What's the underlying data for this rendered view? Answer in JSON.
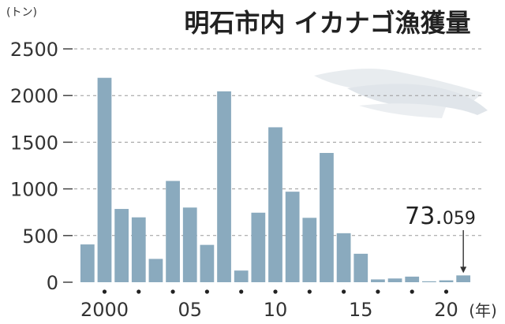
{
  "chart_data": {
    "type": "bar",
    "title": "明石市内 イカナゴ漁獲量",
    "unit_label": "(トン)",
    "xlabel_suffix": "(年)",
    "ylim": [
      0,
      2500
    ],
    "yticks": [
      0,
      500,
      1000,
      1500,
      2000,
      2500
    ],
    "ytick_labels": [
      "0",
      "500",
      "1000",
      "1500",
      "2000",
      "2500"
    ],
    "grid": true,
    "bar_color": "#8aaabe",
    "years": [
      1999,
      2000,
      2001,
      2002,
      2003,
      2004,
      2005,
      2006,
      2007,
      2008,
      2009,
      2010,
      2011,
      2012,
      2013,
      2014,
      2015,
      2016,
      2017,
      2018,
      2019,
      2020,
      2021
    ],
    "values": [
      405,
      2190,
      785,
      695,
      250,
      1085,
      800,
      400,
      2045,
      125,
      745,
      1660,
      970,
      690,
      1385,
      525,
      305,
      30,
      40,
      60,
      10,
      20,
      73.059
    ],
    "xtick_labels": [
      {
        "year": 2000,
        "label": "2000"
      },
      {
        "year": 2005,
        "label": "05"
      },
      {
        "year": 2010,
        "label": "10"
      },
      {
        "year": 2015,
        "label": "15"
      },
      {
        "year": 2020,
        "label": "20"
      }
    ],
    "annotation": {
      "year": 2021,
      "main": "73.",
      "small": "059"
    }
  }
}
